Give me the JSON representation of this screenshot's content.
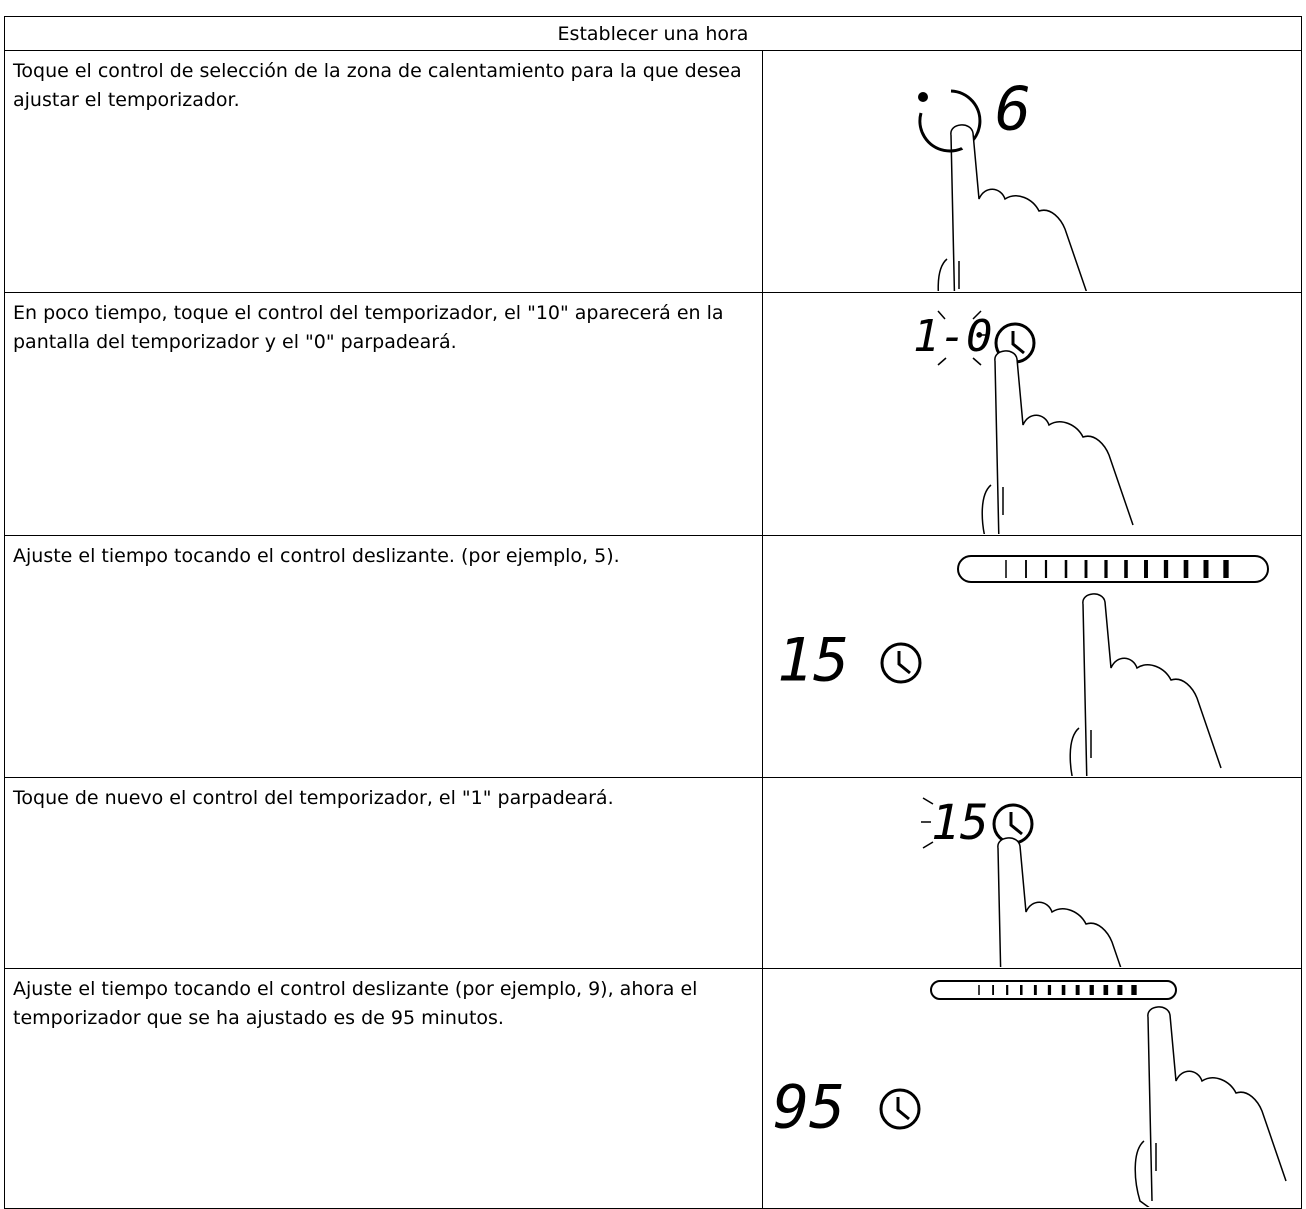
{
  "header": {
    "title": "Establecer una hora"
  },
  "table": {
    "rows": [
      {
        "text": "Toque el control de selección de la zona de calentamiento para la que desea ajustar el temporizador.",
        "display": "6"
      },
      {
        "text": "En poco tiempo, toque el control del temporizador, el \"10\" aparecerá en la pantalla del temporizador y el \"0\" parpadeará.",
        "display": "1-0"
      },
      {
        "text": "Ajuste el tiempo tocando el control deslizante. (por ejemplo, 5).",
        "display": "15"
      },
      {
        "text": "Toque de nuevo el control del temporizador, el \"1\" parpadeará.",
        "display": "15"
      },
      {
        "text": "Ajuste el tiempo tocando el control deslizante (por ejemplo, 9), ahora el temporizador que se ha ajustado es de 95 minutos.",
        "display": "95"
      }
    ]
  }
}
